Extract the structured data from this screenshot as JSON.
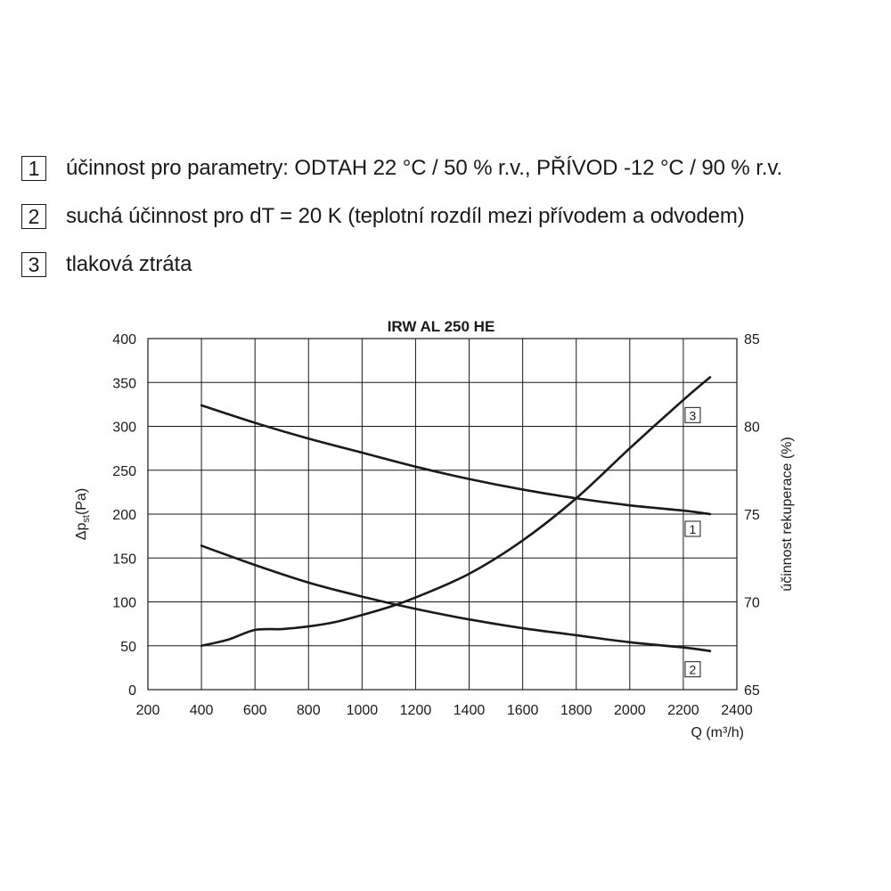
{
  "legend": [
    {
      "num": "1",
      "text": "účinnost pro parametry: ODTAH 22 °C / 50 % r.v., PŘÍVOD -12 °C / 90 % r.v."
    },
    {
      "num": "2",
      "text": "suchá účinnost pro dT = 20 K (teplotní rozdíl mezi přívodem a odvodem)"
    },
    {
      "num": "3",
      "text": "tlaková ztráta"
    }
  ],
  "chart_data": {
    "type": "line",
    "title": "IRW AL 250 HE",
    "xlabel": "Q (m³/h)",
    "ylabel_left": "Δp",
    "ylabel_left_sub": "st",
    "ylabel_left_unit": "(Pa)",
    "ylabel_right": "účinnost rekuperace (%)",
    "xlim": [
      200,
      2400
    ],
    "ylim_left": [
      0,
      400
    ],
    "ylim_right": [
      65,
      85
    ],
    "x_ticks": [
      200,
      400,
      600,
      800,
      1000,
      1200,
      1400,
      1600,
      1800,
      2000,
      2200,
      2400
    ],
    "y_left_ticks": [
      0,
      50,
      100,
      150,
      200,
      250,
      300,
      350,
      400
    ],
    "y_right_ticks": [
      65,
      70,
      75,
      80,
      85
    ],
    "grid": true,
    "series": [
      {
        "tag": "1",
        "axis": "right",
        "x": [
          400,
          600,
          800,
          1000,
          1200,
          1400,
          1600,
          1800,
          2000,
          2200,
          2300
        ],
        "values": [
          81.2,
          80.2,
          79.3,
          78.5,
          77.7,
          77.0,
          76.4,
          75.9,
          75.5,
          75.2,
          75.0
        ]
      },
      {
        "tag": "2",
        "axis": "right",
        "x": [
          400,
          600,
          800,
          1000,
          1200,
          1400,
          1600,
          1800,
          2000,
          2200,
          2300
        ],
        "values": [
          73.2,
          72.1,
          71.1,
          70.3,
          69.6,
          69.0,
          68.5,
          68.1,
          67.7,
          67.4,
          67.2
        ]
      },
      {
        "tag": "3",
        "axis": "left",
        "x": [
          400,
          500,
          600,
          700,
          800,
          900,
          1000,
          1100,
          1200,
          1400,
          1600,
          1800,
          2000,
          2200,
          2300
        ],
        "values": [
          50,
          57,
          68,
          69,
          72,
          77,
          85,
          94,
          105,
          132,
          170,
          218,
          275,
          330,
          356
        ]
      }
    ]
  }
}
